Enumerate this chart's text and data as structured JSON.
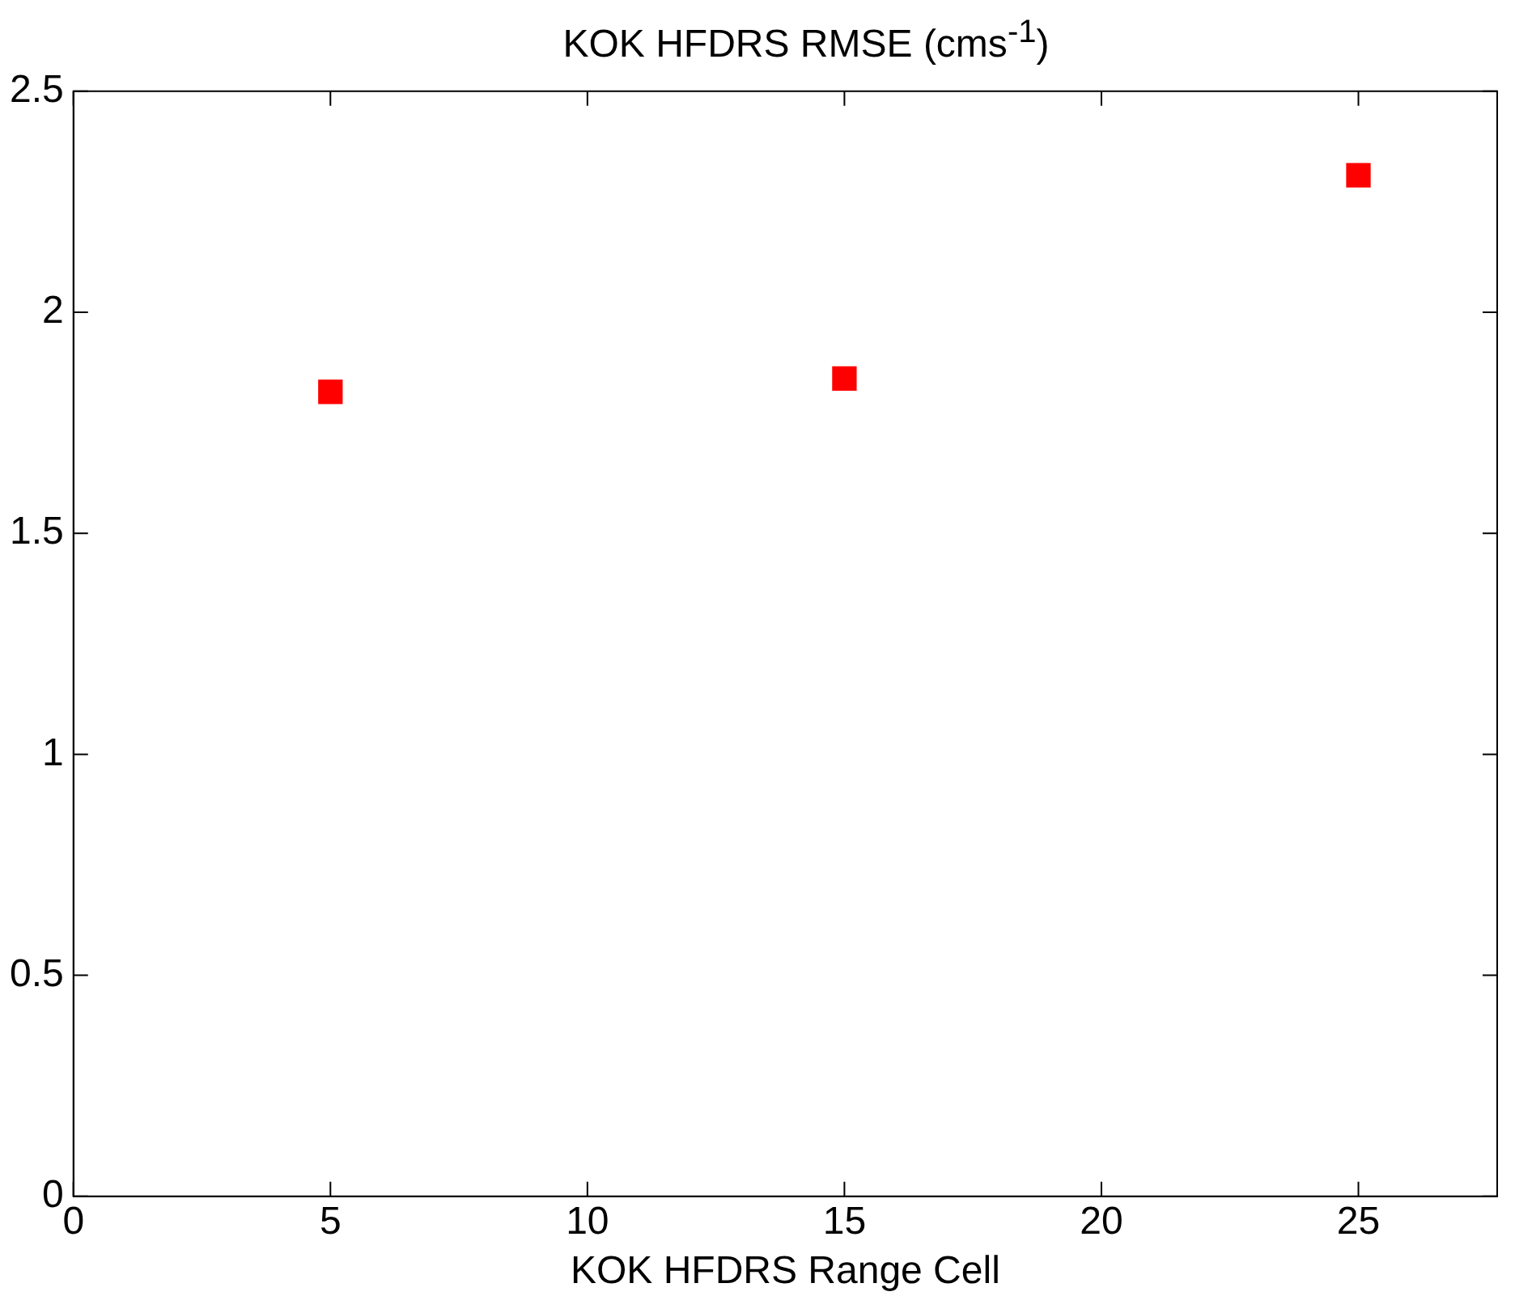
{
  "chart_data": {
    "type": "scatter",
    "title": "KOK HFDRS RMSE (cms$^{-1}$)",
    "xlabel": "KOK HFDRS Range Cell",
    "x": [
      5,
      15,
      25
    ],
    "series": [
      {
        "color": "#ff0000",
        "values": [
          1.82,
          1.85,
          2.31
        ]
      }
    ],
    "xlim": [
      0,
      27.7
    ],
    "xticks": [
      0,
      5,
      10,
      15,
      20,
      25
    ],
    "ylim": [
      0,
      2.5
    ],
    "yticks": [
      0,
      0.5,
      1,
      1.5,
      2,
      2.5
    ],
    "grid": false,
    "legend": false,
    "marker": "square"
  }
}
